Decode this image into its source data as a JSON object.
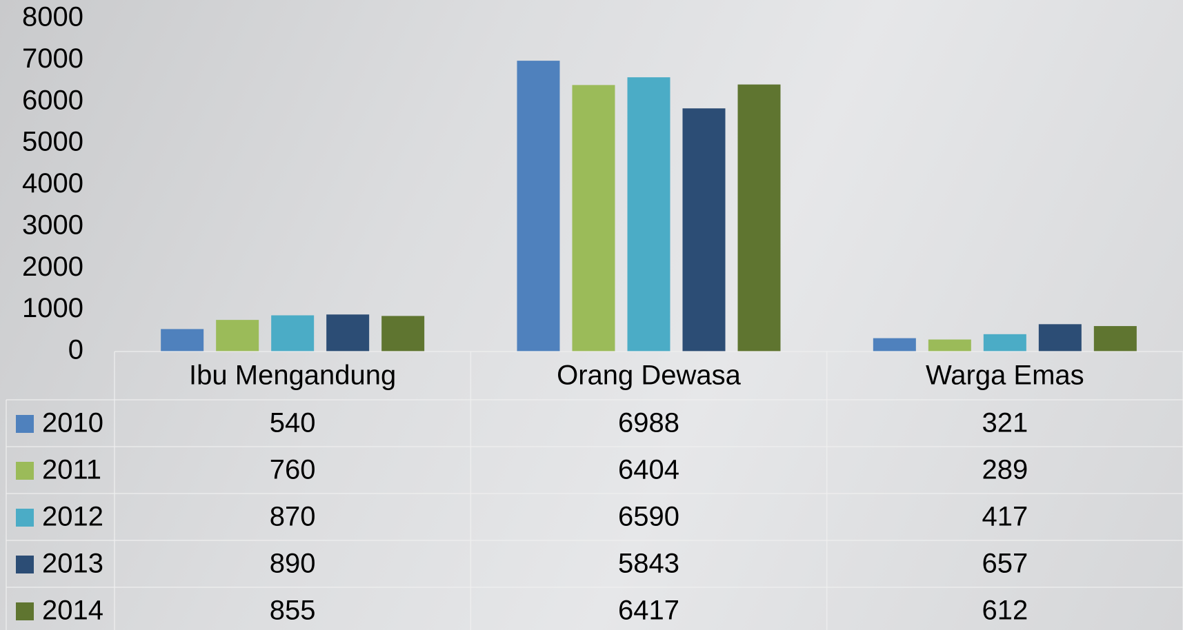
{
  "chart_data": {
    "type": "bar",
    "categories": [
      "Ibu Mengandung",
      "Orang Dewasa",
      "Warga Emas"
    ],
    "series": [
      {
        "name": "2010",
        "color": "#4f81bd",
        "values": [
          540,
          6988,
          321
        ]
      },
      {
        "name": "2011",
        "color": "#9bbb59",
        "values": [
          760,
          6404,
          289
        ]
      },
      {
        "name": "2012",
        "color": "#4bacc6",
        "values": [
          870,
          6590,
          417
        ]
      },
      {
        "name": "2013",
        "color": "#2c4d75",
        "values": [
          890,
          5843,
          657
        ]
      },
      {
        "name": "2014",
        "color": "#5f7530",
        "values": [
          855,
          6417,
          612
        ]
      }
    ],
    "ylim": [
      0,
      8000
    ],
    "yticks": [
      0,
      1000,
      2000,
      3000,
      4000,
      5000,
      6000,
      7000,
      8000
    ],
    "grid": false,
    "data_table": true
  }
}
